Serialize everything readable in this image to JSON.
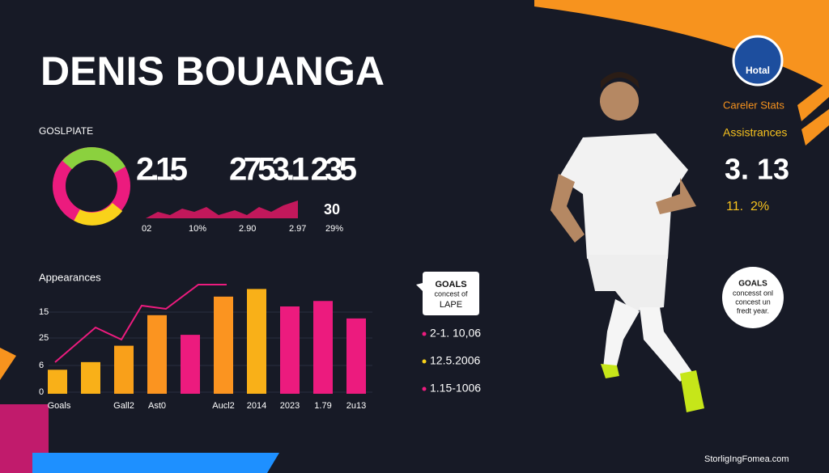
{
  "header": {
    "title": "DENIS BOUANGA"
  },
  "donut": {
    "label": "GOSLPIATE"
  },
  "stats": {
    "big_left": "2.15",
    "big_right": "2753.1 235",
    "side_value": "30",
    "row": [
      "02",
      "10%",
      "2.90",
      "2.97",
      "29%"
    ]
  },
  "chart_data": {
    "type": "bar",
    "title": "Appearances",
    "y_axis_labels": [
      "15",
      "25",
      "6",
      "0"
    ],
    "categories": [
      "Goals",
      null,
      "Gall2",
      "Ast0",
      null,
      "Aucl2",
      "2014",
      "2023",
      "1.79",
      "2u13"
    ],
    "values": [
      22,
      29,
      44,
      72,
      54,
      89,
      96,
      80,
      85,
      69
    ],
    "colors": [
      "#f9b018",
      "#f9b018",
      "#f9a01a",
      "#fb9420",
      "#ec1b7e",
      "#fb9420",
      "#f9b018",
      "#ec1b7e",
      "#ec1b7e",
      "#ec1b7e"
    ],
    "ylim": [
      0,
      100
    ]
  },
  "callout": {
    "lines": [
      "GOALS",
      "concest of",
      "LAPE"
    ]
  },
  "legend": [
    {
      "text": "2-1. 10,06",
      "color": "#ec1b7e"
    },
    {
      "text": "12.5.2006",
      "color": "#f9d21a"
    },
    {
      "text": "1.15-1006",
      "color": "#ec1b7e"
    }
  ],
  "badge": {
    "text": "Hotal"
  },
  "career": {
    "title": "Careler Stats",
    "subtitle": "Assistrances",
    "value": "3. 13",
    "detail": "11.  2%"
  },
  "circle_note": {
    "lines": [
      "GOALS",
      "concesst onl",
      "concest un",
      "fredt year."
    ]
  },
  "footer": {
    "text": "StorligIngFomea.com"
  }
}
